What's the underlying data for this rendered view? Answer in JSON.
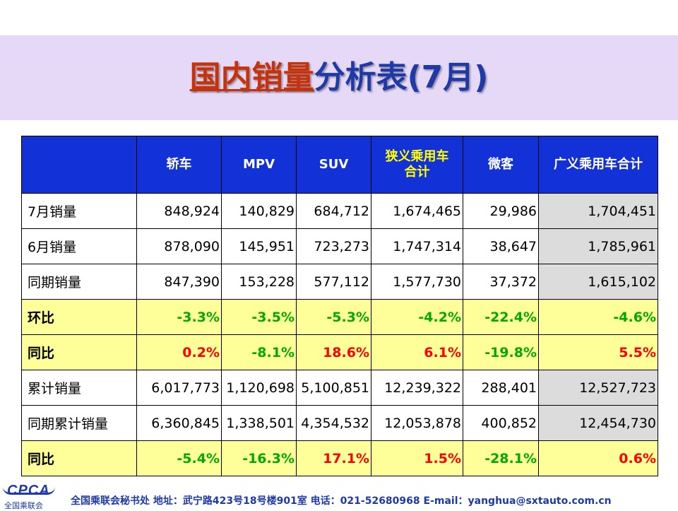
{
  "title": {
    "part1": "国内销量",
    "part2": "分析表(7月)"
  },
  "table": {
    "headers": [
      "轿车",
      "MPV",
      "SUV",
      "狭义乘用车合计",
      "微客",
      "广义乘用车合计"
    ],
    "header_lines": {
      "narrow_line1": "狭义乘用车",
      "narrow_line2": "合计"
    },
    "rows": [
      {
        "label": "7月销量",
        "values": [
          "848,924",
          "140,829",
          "684,712",
          "1,674,465",
          "29,986",
          "1,704,451"
        ]
      },
      {
        "label": "6月销量",
        "values": [
          "878,090",
          "145,951",
          "723,273",
          "1,747,314",
          "38,647",
          "1,785,961"
        ]
      },
      {
        "label": "同期销量",
        "values": [
          "847,390",
          "153,228",
          "577,112",
          "1,577,730",
          "37,372",
          "1,615,102"
        ]
      },
      {
        "label": "环比",
        "values": [
          "-3.3%",
          "-3.5%",
          "-5.3%",
          "-4.2%",
          "-22.4%",
          "-4.6%"
        ]
      },
      {
        "label": "同比",
        "values": [
          "0.2%",
          "-8.1%",
          "18.6%",
          "6.1%",
          "-19.8%",
          "5.5%"
        ]
      },
      {
        "label": "累计销量",
        "values": [
          "6,017,773",
          "1,120,698",
          "5,100,851",
          "12,239,322",
          "288,401",
          "12,527,723"
        ]
      },
      {
        "label": "同期累计销量",
        "values": [
          "6,360,845",
          "1,338,501",
          "4,354,532",
          "12,053,878",
          "400,852",
          "12,454,730"
        ]
      },
      {
        "label": "同比",
        "values": [
          "-5.4%",
          "-16.3%",
          "17.1%",
          "1.5%",
          "-28.1%",
          "0.6%"
        ]
      }
    ]
  },
  "footer": {
    "logo_text": "CPCA",
    "logo_sub": "全国乘联会",
    "text": "全国乘联会秘书处  地址：武宁路423号18号楼901室    电话：021-52680968   E-mail：yanghua@sxtauto.com.cn"
  },
  "colors": {
    "header_bg": "#1231d6",
    "pct_row_bg": "#ffff99",
    "gray_col": "#dcdcdc",
    "positive": "#ff0000",
    "negative": "#00aa00",
    "title_red": "#c8320a",
    "title_blue": "#1e3aa8"
  }
}
